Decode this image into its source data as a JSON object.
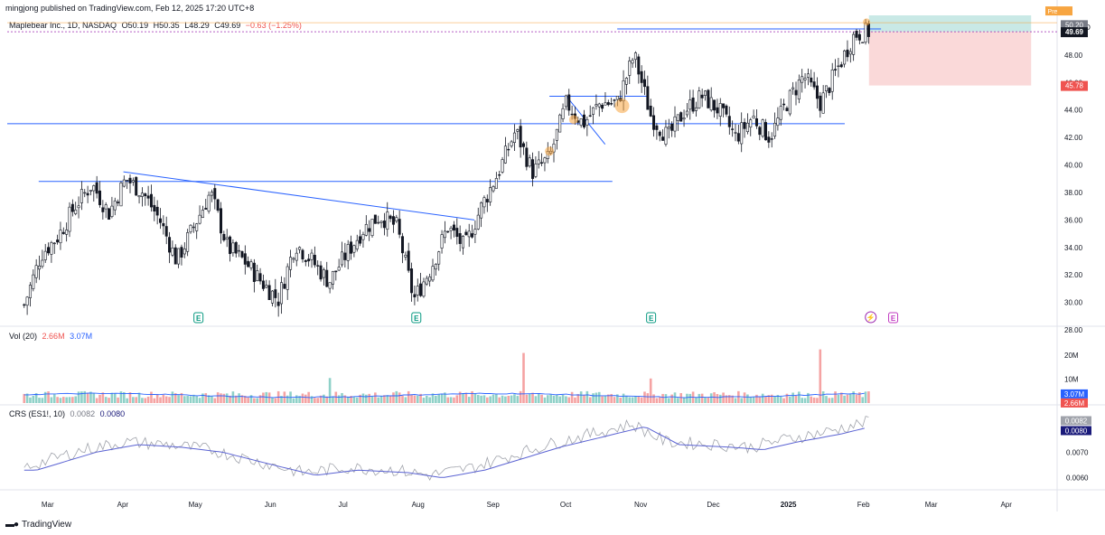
{
  "header": {
    "publisher": "mingjong published on TradingView.com, Feb 12, 2025 17:20 UTC+8"
  },
  "symbol": {
    "name": "Maplebear Inc., 1D, NASDAQ",
    "open_label": "O",
    "open": "50.19",
    "high_label": "H",
    "high": "50.35",
    "low_label": "L",
    "low": "48.29",
    "close_label": "C",
    "close": "49.69",
    "change": "−0.63 (−1.25%)"
  },
  "volume_legend": {
    "label": "Vol (20)",
    "value1": "2.66M",
    "value2": "3.07M"
  },
  "crs_legend": {
    "label": "CRS (ES1!, 10)",
    "value1": "0.0082",
    "value2": "0.0080"
  },
  "currency": "USD",
  "price_tags": {
    "pre_label": "Pre",
    "pre_value": "50.20",
    "target": "50.20",
    "last": "49.69",
    "stop": "45.78"
  },
  "volume_tags": {
    "ma": "3.07M",
    "vol": "2.66M",
    "ticks": [
      "20M",
      "10M"
    ]
  },
  "crs_tags": {
    "a": "0.0082",
    "b": "0.0080",
    "ticks": [
      "0.0070",
      "0.0060"
    ]
  },
  "footer": {
    "brand": "TradingView"
  },
  "colors": {
    "up": "#26a69a",
    "down": "#ef5350",
    "line": "#2962ff",
    "ma": "#5b63d3",
    "profit_zone": "#b2dfdb",
    "loss_zone": "#f8c9c9",
    "highlight": "#f7a541",
    "earnings": "#089981"
  },
  "chart_data": {
    "type": "candlestick",
    "title": "Maplebear Inc., 1D, NASDAQ",
    "price_axis": {
      "ylim": [
        28,
        52
      ],
      "ticks": [
        "28.00",
        "30.00",
        "32.00",
        "34.00",
        "36.00",
        "38.00",
        "40.00",
        "42.00",
        "44.00",
        "46.00",
        "48.00"
      ]
    },
    "x_ticks": [
      "Mar",
      "Apr",
      "May",
      "Jun",
      "Jul",
      "Aug",
      "Sep",
      "Oct",
      "Nov",
      "Dec",
      "2025",
      "Feb",
      "Mar",
      "Apr"
    ],
    "price_path": [
      [
        "2024-02-27",
        29.8
      ],
      [
        "2024-03-05",
        33.5
      ],
      [
        "2024-03-12",
        34.8
      ],
      [
        "2024-03-19",
        37.0
      ],
      [
        "2024-03-26",
        38.6
      ],
      [
        "2024-04-02",
        36.5
      ],
      [
        "2024-04-09",
        39.0
      ],
      [
        "2024-04-16",
        38.0
      ],
      [
        "2024-04-23",
        36.0
      ],
      [
        "2024-04-30",
        33.0
      ],
      [
        "2024-05-07",
        35.5
      ],
      [
        "2024-05-14",
        38.0
      ],
      [
        "2024-05-21",
        34.0
      ],
      [
        "2024-05-28",
        33.0
      ],
      [
        "2024-06-04",
        31.5
      ],
      [
        "2024-06-11",
        30.2
      ],
      [
        "2024-06-18",
        34.3
      ],
      [
        "2024-06-25",
        33.0
      ],
      [
        "2024-07-02",
        31.5
      ],
      [
        "2024-07-09",
        33.5
      ],
      [
        "2024-07-16",
        35.3
      ],
      [
        "2024-07-23",
        36.3
      ],
      [
        "2024-07-30",
        35.5
      ],
      [
        "2024-08-06",
        30.2
      ],
      [
        "2024-08-13",
        32.5
      ],
      [
        "2024-08-20",
        35.5
      ],
      [
        "2024-08-27",
        34.0
      ],
      [
        "2024-09-03",
        37.0
      ],
      [
        "2024-09-10",
        39.5
      ],
      [
        "2024-09-17",
        42.5
      ],
      [
        "2024-09-24",
        39.5
      ],
      [
        "2024-10-01",
        40.5
      ],
      [
        "2024-10-08",
        44.5
      ],
      [
        "2024-10-15",
        43.0
      ],
      [
        "2024-10-22",
        44.5
      ],
      [
        "2024-10-29",
        44.5
      ],
      [
        "2024-11-05",
        48.0
      ],
      [
        "2024-11-12",
        43.5
      ],
      [
        "2024-11-19",
        42.0
      ],
      [
        "2024-11-26",
        44.0
      ],
      [
        "2024-12-03",
        45.0
      ],
      [
        "2024-12-10",
        44.0
      ],
      [
        "2024-12-17",
        42.0
      ],
      [
        "2024-12-24",
        43.5
      ],
      [
        "2024-12-31",
        42.0
      ],
      [
        "2025-01-07",
        44.5
      ],
      [
        "2025-01-14",
        46.5
      ],
      [
        "2025-01-21",
        44.5
      ],
      [
        "2025-01-28",
        47.0
      ],
      [
        "2025-02-04",
        49.5
      ],
      [
        "2025-02-10",
        49.69
      ]
    ],
    "horizontal_levels": [
      50.4,
      49.69,
      49.9,
      43.0,
      38.8
    ],
    "trendline": [
      [
        "2024-04-08",
        39.5
      ],
      [
        "2024-08-31",
        36.0
      ]
    ],
    "position": {
      "target": 50.2,
      "entry": 49.69,
      "stop": 45.78
    },
    "earnings_markers": [
      "2024-05-09",
      "2024-08-07",
      "2024-11-12",
      "2025-02-20"
    ],
    "volume": {
      "ylim": [
        0,
        25
      ],
      "unit": "M",
      "ma_last": 3.07,
      "last": 2.66,
      "spikes": [
        [
          "2024-09-20",
          21.0
        ],
        [
          "2025-01-21",
          22.5
        ],
        [
          "2024-07-02",
          10.5
        ],
        [
          "2024-11-12",
          10.3
        ]
      ]
    },
    "crs": {
      "ylim": [
        0.0056,
        0.0085
      ],
      "last_a": 0.0082,
      "last_b": 0.008
    }
  }
}
